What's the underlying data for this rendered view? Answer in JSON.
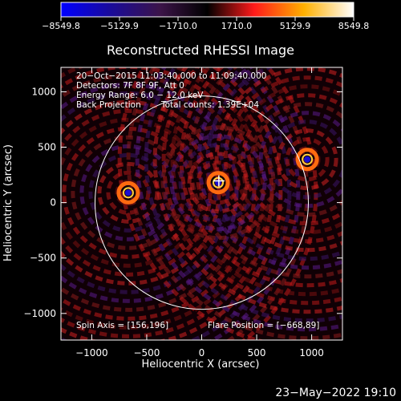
{
  "chart_data": {
    "type": "heatmap",
    "title": "Reconstructed RHESSI Image",
    "xlabel": "Heliocentric X (arcsec)",
    "ylabel": "Heliocentric Y (arcsec)",
    "xlim": [
      -1280,
      1280
    ],
    "ylim": [
      -1240,
      1220
    ],
    "xticks": [
      -1000,
      -500,
      0,
      500,
      1000
    ],
    "yticks": [
      -1000,
      -500,
      0,
      500,
      1000
    ],
    "xtick_labels": [
      "−1000",
      "−500",
      "0",
      "500",
      "1000"
    ],
    "ytick_labels": [
      "−1000",
      "−500",
      "0",
      "500",
      "1000"
    ],
    "colorbar": {
      "min": -8549.8,
      "max": 8549.8,
      "tick_values": [
        -8549.8,
        -5129.9,
        -1710.0,
        1710.0,
        5129.9,
        8549.8
      ],
      "tick_labels": [
        "−8549.8",
        "−5129.9",
        "−1710.0",
        "1710.0",
        "5129.9",
        "8549.8"
      ],
      "colors": [
        "#0000ff",
        "#1a0b9a",
        "#3c1448",
        "#000000",
        "#ff1a1a",
        "#ffb000",
        "#ffffff"
      ]
    },
    "annotations": {
      "time_range": "20−Oct−2015 11:03:40.000 to 11:09:40.000",
      "detectors": "Detectors: 7F 8F 9F, Att 0",
      "energy_range": "Energy Range: 6.0 − 12.0 keV",
      "method": "Back Projection",
      "total_counts": "Total counts: 1.39E+04",
      "spin_axis": "Spin Axis = [156,196]",
      "flare_position": "Flare Position = [−668,89]"
    },
    "solar_disk": {
      "center": [
        0,
        0
      ],
      "radius_arcsec": 970
    },
    "spin_axis": [
      156,
      196
    ],
    "sources": [
      {
        "x": -668,
        "y": 89,
        "sign": "negative-core"
      },
      {
        "x": 960,
        "y": 390,
        "sign": "negative-core"
      },
      {
        "x": 150,
        "y": 180,
        "sign": "negative-core"
      }
    ]
  },
  "footer": {
    "date": "23−May−2022 19:10"
  }
}
